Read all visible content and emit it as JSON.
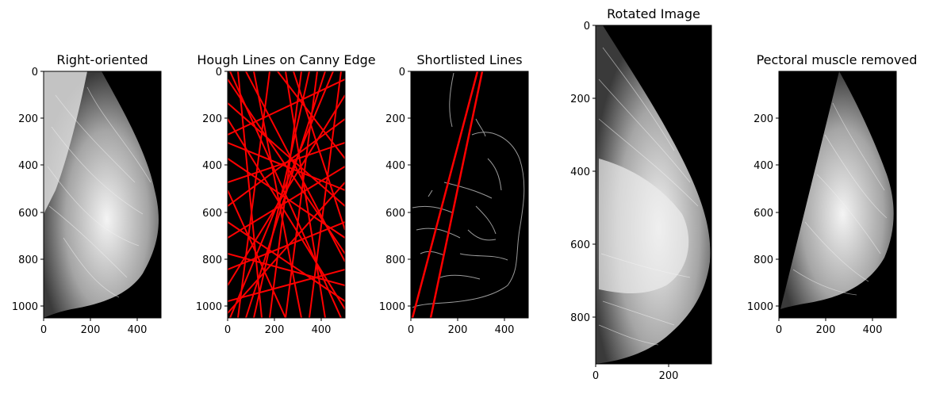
{
  "panels": [
    {
      "title": "Right-oriented",
      "xticks": [
        "0",
        "200",
        "400"
      ],
      "yticks": [
        "0",
        "200",
        "400",
        "600",
        "800",
        "1000"
      ]
    },
    {
      "title": "Hough Lines on Canny Edge",
      "xticks": [
        "0",
        "200",
        "400"
      ],
      "yticks": [
        "0",
        "200",
        "400",
        "600",
        "800",
        "1000"
      ]
    },
    {
      "title": "Shortlisted Lines",
      "xticks": [
        "0",
        "200",
        "400"
      ],
      "yticks": [
        "0",
        "200",
        "400",
        "600",
        "800",
        "1000"
      ]
    },
    {
      "title": "Rotated Image",
      "xticks": [
        "0",
        "200"
      ],
      "yticks": [
        "0",
        "200",
        "400",
        "600",
        "800"
      ]
    },
    {
      "title": "Pectoral muscle removed",
      "xticks": [
        "0",
        "200",
        "400"
      ],
      "yticks": [
        "200",
        "400",
        "600",
        "800",
        "1000"
      ]
    }
  ],
  "colors": {
    "background": "#000000",
    "hough_line": "#ff0000",
    "edge": "#9a9a9a",
    "tissue": "#d8d8d8"
  }
}
